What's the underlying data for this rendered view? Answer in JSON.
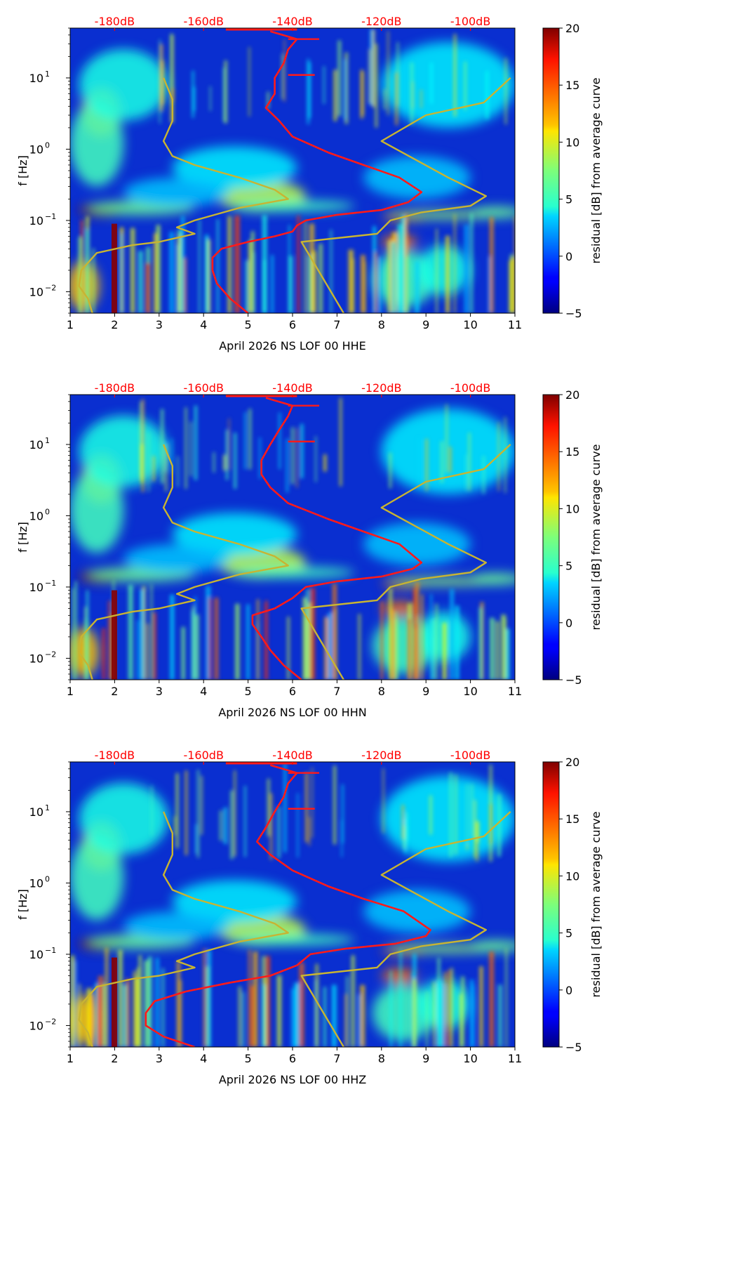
{
  "colors": {
    "background": "#ffffff",
    "db_axis_text": "#ff0000",
    "average_curve": "#ff1a1a",
    "model_curve": "#c8b432",
    "axis": "#000000"
  },
  "colorbar": {
    "label": "residual [dB] from average curve",
    "colormap": "jet",
    "range": [
      -5,
      20
    ],
    "ticks": [
      "−5",
      "0",
      "5",
      "10",
      "15",
      "20"
    ]
  },
  "chart_data": [
    {
      "type": "heatmap",
      "xlabel": "April 2026 NS LOF 00 HHE",
      "ylabel": "f [Hz]",
      "x_ticks": [
        "1",
        "2",
        "3",
        "4",
        "5",
        "6",
        "7",
        "8",
        "9",
        "10",
        "11"
      ],
      "xlim": [
        1,
        11
      ],
      "y_scale": "log",
      "ylim": [
        0.005,
        50
      ],
      "y_ticks": [
        {
          "base": "10",
          "exp": "−2"
        },
        {
          "base": "10",
          "exp": "−1"
        },
        {
          "base": "10",
          "exp": "0"
        },
        {
          "base": "10",
          "exp": "1"
        }
      ],
      "db_axis": {
        "labels": [
          "-180dB",
          "-160dB",
          "-140dB",
          "-120dB",
          "-100dB"
        ],
        "positions": [
          2,
          4,
          6,
          8,
          10
        ]
      },
      "series": [
        {
          "curve": "average",
          "points": [
            [
              5.0,
              0.005
            ],
            [
              4.6,
              0.008
            ],
            [
              4.3,
              0.013
            ],
            [
              4.2,
              0.02
            ],
            [
              4.2,
              0.03
            ],
            [
              4.4,
              0.04
            ],
            [
              5.0,
              0.05
            ],
            [
              5.6,
              0.06
            ],
            [
              6.0,
              0.07
            ],
            [
              6.1,
              0.085
            ],
            [
              6.3,
              0.1
            ],
            [
              7.0,
              0.12
            ],
            [
              8.0,
              0.14
            ],
            [
              8.6,
              0.18
            ],
            [
              8.9,
              0.25
            ],
            [
              8.4,
              0.4
            ],
            [
              7.6,
              0.6
            ],
            [
              6.8,
              0.9
            ],
            [
              6.0,
              1.5
            ],
            [
              5.7,
              2.5
            ],
            [
              5.4,
              3.8
            ],
            [
              5.6,
              6
            ],
            [
              5.6,
              10
            ],
            [
              5.8,
              16
            ],
            [
              5.9,
              25
            ],
            [
              6.1,
              35
            ],
            [
              5.5,
              45
            ]
          ]
        },
        {
          "curve": "model",
          "points": [
            [
              1.5,
              0.005
            ],
            [
              1.4,
              0.008
            ],
            [
              1.2,
              0.012
            ],
            [
              1.25,
              0.02
            ],
            [
              1.6,
              0.035
            ],
            [
              2.4,
              0.045
            ],
            [
              3.0,
              0.05
            ],
            [
              3.8,
              0.065
            ],
            [
              3.4,
              0.08
            ],
            [
              3.8,
              0.1
            ],
            [
              4.8,
              0.15
            ],
            [
              5.9,
              0.2
            ],
            [
              5.6,
              0.27
            ],
            [
              4.8,
              0.4
            ],
            [
              3.8,
              0.6
            ],
            [
              3.3,
              0.8
            ],
            [
              3.1,
              1.3
            ],
            [
              3.3,
              2.5
            ],
            [
              3.3,
              5
            ],
            [
              3.1,
              10
            ]
          ]
        },
        {
          "curve": "model",
          "points": [
            [
              7.15,
              0.005
            ],
            [
              6.2,
              0.05
            ],
            [
              7.9,
              0.065
            ],
            [
              8.2,
              0.1
            ],
            [
              8.9,
              0.13
            ],
            [
              10.0,
              0.16
            ],
            [
              10.35,
              0.22
            ],
            [
              9.5,
              0.4
            ],
            [
              8.0,
              1.3
            ],
            [
              9.0,
              3.0
            ],
            [
              10.3,
              4.5
            ],
            [
              10.9,
              10
            ]
          ]
        }
      ]
    },
    {
      "type": "heatmap",
      "xlabel": "April 2026 NS LOF 00 HHN",
      "ylabel": "f [Hz]",
      "x_ticks": [
        "1",
        "2",
        "3",
        "4",
        "5",
        "6",
        "7",
        "8",
        "9",
        "10",
        "11"
      ],
      "xlim": [
        1,
        11
      ],
      "y_scale": "log",
      "ylim": [
        0.005,
        50
      ],
      "y_ticks": [
        {
          "base": "10",
          "exp": "−2"
        },
        {
          "base": "10",
          "exp": "−1"
        },
        {
          "base": "10",
          "exp": "0"
        },
        {
          "base": "10",
          "exp": "1"
        }
      ],
      "db_axis": {
        "labels": [
          "-180dB",
          "-160dB",
          "-140dB",
          "-120dB",
          "-100dB"
        ],
        "positions": [
          2,
          4,
          6,
          8,
          10
        ]
      },
      "series": [
        {
          "curve": "average",
          "points": [
            [
              6.2,
              0.005
            ],
            [
              5.8,
              0.008
            ],
            [
              5.5,
              0.013
            ],
            [
              5.3,
              0.02
            ],
            [
              5.1,
              0.03
            ],
            [
              5.1,
              0.04
            ],
            [
              5.6,
              0.05
            ],
            [
              6.0,
              0.07
            ],
            [
              6.3,
              0.1
            ],
            [
              7.0,
              0.12
            ],
            [
              8.0,
              0.14
            ],
            [
              8.7,
              0.18
            ],
            [
              8.9,
              0.22
            ],
            [
              8.4,
              0.4
            ],
            [
              7.6,
              0.6
            ],
            [
              6.8,
              0.9
            ],
            [
              5.9,
              1.5
            ],
            [
              5.5,
              2.5
            ],
            [
              5.3,
              3.8
            ],
            [
              5.3,
              6
            ],
            [
              5.5,
              10
            ],
            [
              5.7,
              16
            ],
            [
              5.9,
              25
            ],
            [
              6.0,
              35
            ],
            [
              5.4,
              45
            ]
          ]
        },
        {
          "curve": "model",
          "points": [
            [
              1.5,
              0.005
            ],
            [
              1.4,
              0.008
            ],
            [
              1.2,
              0.012
            ],
            [
              1.25,
              0.02
            ],
            [
              1.6,
              0.035
            ],
            [
              2.4,
              0.045
            ],
            [
              3.0,
              0.05
            ],
            [
              3.8,
              0.065
            ],
            [
              3.4,
              0.08
            ],
            [
              3.8,
              0.1
            ],
            [
              4.8,
              0.15
            ],
            [
              5.9,
              0.2
            ],
            [
              5.6,
              0.27
            ],
            [
              4.8,
              0.4
            ],
            [
              3.8,
              0.6
            ],
            [
              3.3,
              0.8
            ],
            [
              3.1,
              1.3
            ],
            [
              3.3,
              2.5
            ],
            [
              3.3,
              5
            ],
            [
              3.1,
              10
            ]
          ]
        },
        {
          "curve": "model",
          "points": [
            [
              7.15,
              0.005
            ],
            [
              6.2,
              0.05
            ],
            [
              7.9,
              0.065
            ],
            [
              8.2,
              0.1
            ],
            [
              8.9,
              0.13
            ],
            [
              10.0,
              0.16
            ],
            [
              10.35,
              0.22
            ],
            [
              9.5,
              0.4
            ],
            [
              8.0,
              1.3
            ],
            [
              9.0,
              3.0
            ],
            [
              10.3,
              4.5
            ],
            [
              10.9,
              10
            ]
          ]
        }
      ]
    },
    {
      "type": "heatmap",
      "xlabel": "April 2026 NS LOF 00 HHZ",
      "ylabel": "f [Hz]",
      "x_ticks": [
        "1",
        "2",
        "3",
        "4",
        "5",
        "6",
        "7",
        "8",
        "9",
        "10",
        "11"
      ],
      "xlim": [
        1,
        11
      ],
      "y_scale": "log",
      "ylim": [
        0.005,
        50
      ],
      "y_ticks": [
        {
          "base": "10",
          "exp": "−2"
        },
        {
          "base": "10",
          "exp": "−1"
        },
        {
          "base": "10",
          "exp": "0"
        },
        {
          "base": "10",
          "exp": "1"
        }
      ],
      "db_axis": {
        "labels": [
          "-180dB",
          "-160dB",
          "-140dB",
          "-120dB",
          "-100dB"
        ],
        "positions": [
          2,
          4,
          6,
          8,
          10
        ]
      },
      "series": [
        {
          "curve": "average",
          "points": [
            [
              3.8,
              0.005
            ],
            [
              3.1,
              0.007
            ],
            [
              2.7,
              0.01
            ],
            [
              2.7,
              0.015
            ],
            [
              2.9,
              0.022
            ],
            [
              3.6,
              0.03
            ],
            [
              4.6,
              0.04
            ],
            [
              5.5,
              0.05
            ],
            [
              6.1,
              0.07
            ],
            [
              6.4,
              0.1
            ],
            [
              7.2,
              0.12
            ],
            [
              8.3,
              0.14
            ],
            [
              9.0,
              0.18
            ],
            [
              9.1,
              0.22
            ],
            [
              8.5,
              0.4
            ],
            [
              7.6,
              0.6
            ],
            [
              6.8,
              0.9
            ],
            [
              6.0,
              1.5
            ],
            [
              5.5,
              2.5
            ],
            [
              5.2,
              3.8
            ],
            [
              5.4,
              6
            ],
            [
              5.6,
              10
            ],
            [
              5.8,
              16
            ],
            [
              5.9,
              25
            ],
            [
              6.1,
              35
            ],
            [
              5.5,
              45
            ]
          ]
        },
        {
          "curve": "model",
          "points": [
            [
              1.5,
              0.005
            ],
            [
              1.4,
              0.008
            ],
            [
              1.2,
              0.012
            ],
            [
              1.25,
              0.02
            ],
            [
              1.6,
              0.035
            ],
            [
              2.4,
              0.045
            ],
            [
              3.0,
              0.05
            ],
            [
              3.8,
              0.065
            ],
            [
              3.4,
              0.08
            ],
            [
              3.8,
              0.1
            ],
            [
              4.8,
              0.15
            ],
            [
              5.9,
              0.2
            ],
            [
              5.6,
              0.27
            ],
            [
              4.8,
              0.4
            ],
            [
              3.8,
              0.6
            ],
            [
              3.3,
              0.8
            ],
            [
              3.1,
              1.3
            ],
            [
              3.3,
              2.5
            ],
            [
              3.3,
              5
            ],
            [
              3.1,
              10
            ]
          ]
        },
        {
          "curve": "model",
          "points": [
            [
              7.15,
              0.005
            ],
            [
              6.2,
              0.05
            ],
            [
              7.9,
              0.065
            ],
            [
              8.2,
              0.1
            ],
            [
              8.9,
              0.13
            ],
            [
              10.0,
              0.16
            ],
            [
              10.35,
              0.22
            ],
            [
              9.5,
              0.4
            ],
            [
              8.0,
              1.3
            ],
            [
              9.0,
              3.0
            ],
            [
              10.3,
              4.5
            ],
            [
              10.9,
              10
            ]
          ]
        }
      ]
    }
  ]
}
